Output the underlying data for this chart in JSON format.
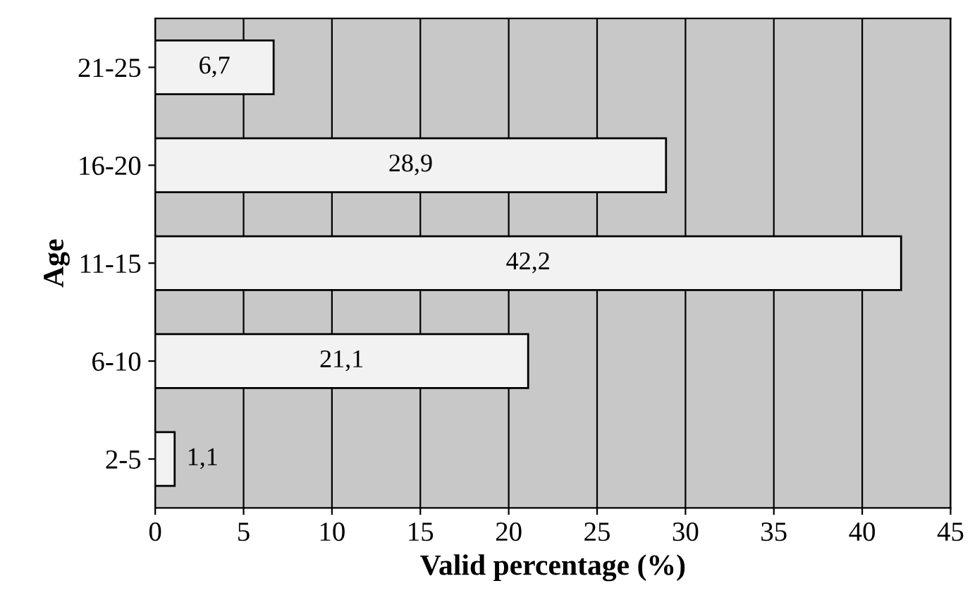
{
  "chart_data": {
    "type": "bar",
    "orientation": "horizontal",
    "xlabel": "Valid percentage (%)",
    "ylabel": "Age",
    "categories": [
      "21-25",
      "16-20",
      "11-15",
      "6-10",
      "2-5"
    ],
    "values": [
      6.7,
      28.9,
      42.2,
      21.1,
      1.1
    ],
    "value_labels": [
      "6,7",
      "28,9",
      "42,2",
      "21,1",
      "1,1"
    ],
    "color": "#f2f2f2",
    "xlim": [
      0,
      45
    ],
    "xticks": [
      0,
      5,
      10,
      15,
      20,
      25,
      30,
      35,
      40,
      45
    ],
    "grid": "x"
  }
}
